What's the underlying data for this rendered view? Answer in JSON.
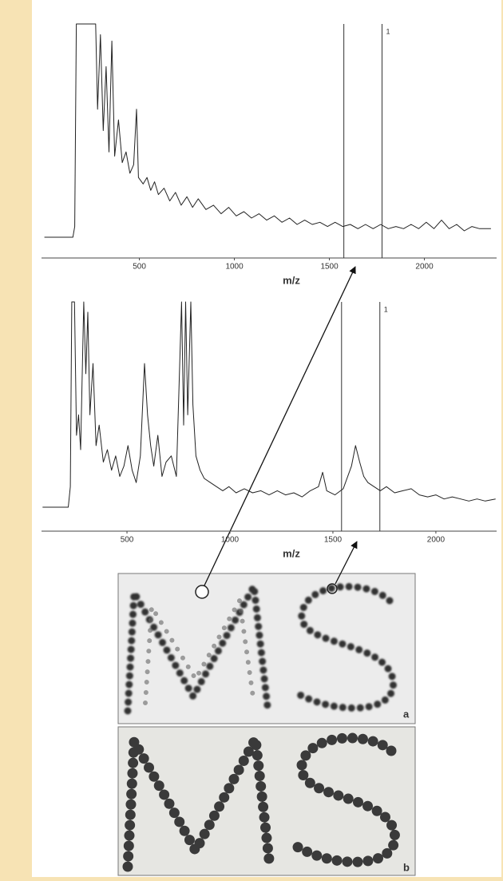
{
  "chart_data": [
    {
      "type": "line",
      "xlabel": "m/z",
      "xlim": [
        -15,
        2380
      ],
      "ylim": [
        0,
        100
      ],
      "xticks": [
        500,
        1000,
        1500,
        2000
      ],
      "vlines": [
        {
          "value": 1576
        },
        {
          "value": 1777,
          "label": "1"
        }
      ],
      "x": [
        0,
        150,
        160,
        168,
        270,
        280,
        295,
        310,
        325,
        340,
        355,
        370,
        390,
        410,
        430,
        450,
        470,
        485,
        495,
        520,
        540,
        560,
        580,
        600,
        630,
        660,
        690,
        720,
        750,
        780,
        810,
        850,
        890,
        930,
        970,
        1010,
        1050,
        1090,
        1130,
        1170,
        1210,
        1250,
        1290,
        1330,
        1370,
        1410,
        1450,
        1490,
        1530,
        1570,
        1610,
        1650,
        1690,
        1730,
        1770,
        1810,
        1850,
        1890,
        1930,
        1970,
        2010,
        2050,
        2090,
        2130,
        2170,
        2210,
        2250,
        2290,
        2350
      ],
      "series": [
        {
          "color": "#222222",
          "values": [
            0,
            0,
            5,
            100,
            100,
            60,
            95,
            50,
            80,
            40,
            92,
            38,
            55,
            35,
            40,
            30,
            34,
            60,
            28,
            25,
            28,
            22,
            26,
            20,
            23,
            17,
            21,
            15,
            19,
            14,
            18,
            13,
            15,
            11,
            14,
            10,
            12,
            9,
            11,
            8,
            10,
            7,
            9,
            6,
            8,
            6,
            7,
            5,
            7,
            5,
            6,
            4,
            6,
            4,
            6,
            4,
            5,
            4,
            6,
            4,
            7,
            4,
            8,
            4,
            6,
            3,
            5,
            4,
            4
          ]
        }
      ]
    },
    {
      "type": "line",
      "xlabel": "m/z",
      "xlim": [
        85,
        2295
      ],
      "ylim": [
        0,
        100
      ],
      "xticks": [
        500,
        1000,
        1500,
        2000
      ],
      "vlines": [
        {
          "value": 1542
        },
        {
          "value": 1728,
          "label": "1"
        }
      ],
      "x": [
        90,
        215,
        225,
        232,
        245,
        255,
        265,
        275,
        290,
        300,
        310,
        320,
        335,
        350,
        365,
        385,
        405,
        425,
        445,
        465,
        485,
        505,
        525,
        545,
        565,
        585,
        600,
        615,
        630,
        650,
        670,
        690,
        715,
        740,
        765,
        775,
        785,
        795,
        810,
        820,
        835,
        855,
        875,
        905,
        935,
        965,
        995,
        1030,
        1070,
        1110,
        1150,
        1190,
        1230,
        1270,
        1310,
        1350,
        1390,
        1430,
        1450,
        1470,
        1510,
        1550,
        1590,
        1610,
        1630,
        1650,
        1670,
        1700,
        1730,
        1760,
        1800,
        1840,
        1880,
        1920,
        1960,
        2000,
        2040,
        2080,
        2120,
        2160,
        2200,
        2240,
        2290
      ],
      "series": [
        {
          "color": "#222222",
          "values": [
            0,
            0,
            10,
            100,
            100,
            35,
            45,
            28,
            100,
            65,
            95,
            45,
            70,
            30,
            40,
            22,
            28,
            18,
            25,
            15,
            20,
            30,
            18,
            12,
            25,
            70,
            45,
            30,
            20,
            35,
            15,
            22,
            25,
            15,
            100,
            40,
            100,
            45,
            100,
            50,
            25,
            18,
            14,
            12,
            10,
            8,
            10,
            7,
            9,
            7,
            8,
            6,
            8,
            6,
            7,
            5,
            8,
            10,
            17,
            8,
            6,
            9,
            20,
            30,
            22,
            15,
            12,
            10,
            8,
            10,
            7,
            8,
            9,
            6,
            5,
            6,
            4,
            5,
            4,
            3,
            4,
            3,
            4
          ]
        }
      ]
    }
  ],
  "panels": [
    {
      "label": "a"
    },
    {
      "label": "b"
    }
  ]
}
